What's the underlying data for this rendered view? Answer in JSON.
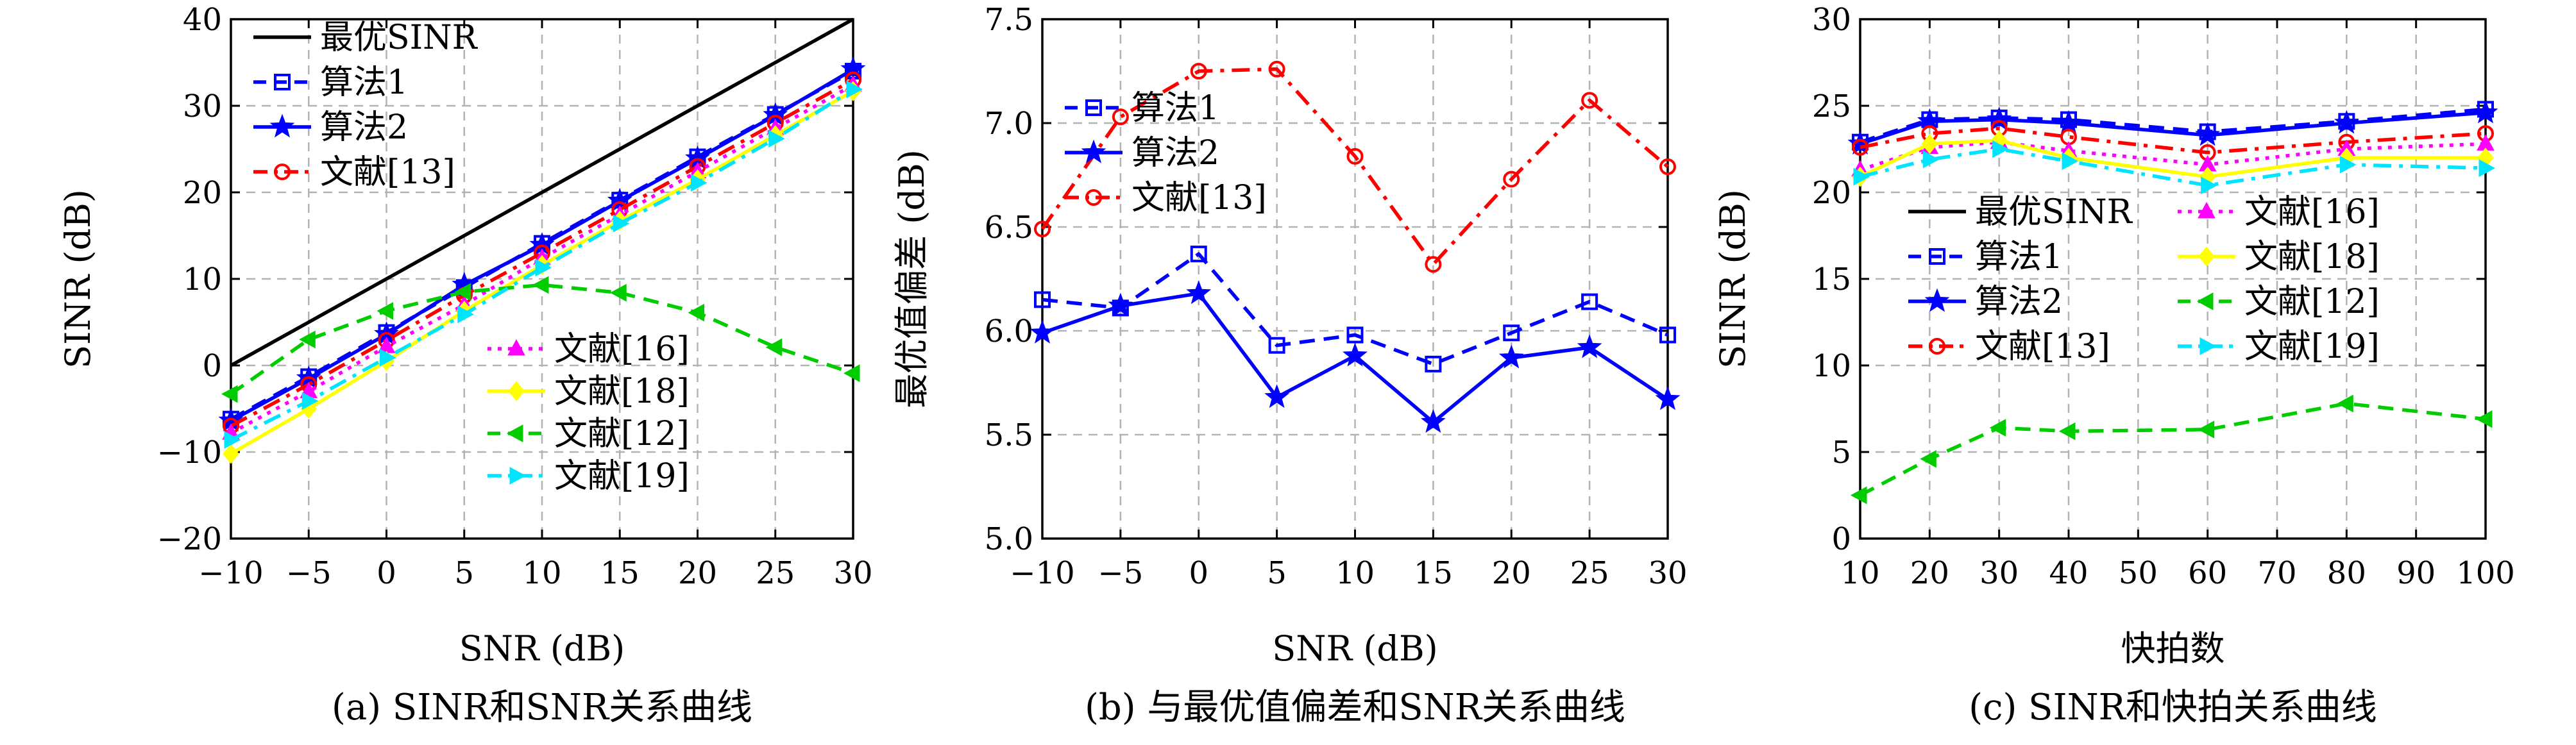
{
  "chart_data": [
    {
      "type": "line",
      "caption": "(a) SINR和SNR关系曲线",
      "xlabel": "SNR (dB)",
      "ylabel": "SINR (dB)",
      "xlim": [
        -10,
        30
      ],
      "ylim": [
        -20,
        40
      ],
      "xticks": [
        -10,
        -5,
        0,
        5,
        10,
        15,
        20,
        25,
        30
      ],
      "yticks": [
        -20,
        -10,
        0,
        10,
        20,
        30,
        40
      ],
      "xtick_labels": [
        "−10",
        "−5",
        "0",
        "5",
        "10",
        "15",
        "20",
        "25",
        "30"
      ],
      "ytick_labels": [
        "−20",
        "−10",
        "0",
        "10",
        "20",
        "30",
        "40"
      ],
      "grid": true,
      "legend_groups": [
        {
          "placement": "top-left",
          "series": [
            "最优SINR",
            "算法1",
            "算法2",
            "文献[13]"
          ]
        },
        {
          "placement": "bottom-right",
          "series": [
            "文献[16]",
            "文献[18]",
            "文献[12]",
            "文献[19]"
          ]
        }
      ],
      "x": [
        -10,
        -5,
        0,
        5,
        10,
        15,
        20,
        25,
        30
      ],
      "series": [
        {
          "name": "最优SINR",
          "values": [
            0,
            5,
            10,
            15,
            20,
            25,
            30,
            35,
            40
          ],
          "color": "#000000",
          "dash": "solid",
          "marker": "none"
        },
        {
          "name": "算法1",
          "values": [
            -6.2,
            -1.3,
            3.8,
            9.0,
            14.1,
            19.1,
            24.1,
            29.0,
            34.0
          ],
          "color": "#0000ff",
          "dash": "dashed",
          "marker": "square"
        },
        {
          "name": "算法2",
          "values": [
            -6.4,
            -1.5,
            3.6,
            9.3,
            13.9,
            19.0,
            23.9,
            28.9,
            34.2
          ],
          "color": "#0000ff",
          "dash": "solid",
          "marker": "star"
        },
        {
          "name": "文献[13]",
          "values": [
            -7.0,
            -2.2,
            2.9,
            8.1,
            13.0,
            18.0,
            23.0,
            28.0,
            33.0
          ],
          "color": "#ff0000",
          "dash": "dashdot",
          "marker": "circle"
        },
        {
          "name": "文献[16]",
          "values": [
            -7.8,
            -3.0,
            2.2,
            7.0,
            12.4,
            17.4,
            22.4,
            27.4,
            32.4
          ],
          "color": "#ff00ff",
          "dash": "dotted",
          "marker": "triangle-up"
        },
        {
          "name": "文献[18]",
          "values": [
            -10.2,
            -5.0,
            0.5,
            6.3,
            11.6,
            16.7,
            21.5,
            26.6,
            31.7
          ],
          "color": "#ffff00",
          "dash": "solid",
          "marker": "diamond"
        },
        {
          "name": "文献[12]",
          "values": [
            -3.3,
            3.0,
            6.3,
            8.5,
            9.3,
            8.4,
            6.1,
            2.1,
            -0.9
          ],
          "color": "#00cc00",
          "dash": "dashed",
          "marker": "triangle-left"
        },
        {
          "name": "文献[19]",
          "values": [
            -8.6,
            -4.1,
            0.9,
            5.9,
            11.3,
            16.4,
            21.1,
            26.2,
            31.9
          ],
          "color": "#00e5ff",
          "dash": "dashdot",
          "marker": "triangle-right"
        }
      ]
    },
    {
      "type": "line",
      "caption": "(b) 与最优值偏差和SNR关系曲线",
      "xlabel": "SNR (dB)",
      "ylabel": "最优值偏差 (dB)",
      "xlim": [
        -10,
        30
      ],
      "ylim": [
        5.0,
        7.5
      ],
      "xticks": [
        -10,
        -5,
        0,
        5,
        10,
        15,
        20,
        25,
        30
      ],
      "yticks": [
        5.0,
        5.5,
        6.0,
        6.5,
        7.0,
        7.5
      ],
      "xtick_labels": [
        "−10",
        "−5",
        "0",
        "5",
        "10",
        "15",
        "20",
        "25",
        "30"
      ],
      "ytick_labels": [
        "5.0",
        "5.5",
        "6.0",
        "6.5",
        "7.0",
        "7.5"
      ],
      "grid": true,
      "legend_groups": [
        {
          "placement": "top-left",
          "series": [
            "算法1",
            "算法2",
            "文献[13]"
          ]
        }
      ],
      "x": [
        -10,
        -5,
        0,
        5,
        10,
        15,
        20,
        25,
        30
      ],
      "series": [
        {
          "name": "算法1",
          "values": [
            6.15,
            6.11,
            6.37,
            5.93,
            5.98,
            5.84,
            5.99,
            6.14,
            5.98
          ],
          "color": "#0000ff",
          "dash": "dashed",
          "marker": "square"
        },
        {
          "name": "算法2",
          "values": [
            5.99,
            6.12,
            6.18,
            5.68,
            5.88,
            5.56,
            5.87,
            5.92,
            5.67
          ],
          "color": "#0000ff",
          "dash": "solid",
          "marker": "star"
        },
        {
          "name": "文献[13]",
          "values": [
            6.49,
            7.03,
            7.25,
            7.26,
            6.84,
            6.32,
            6.73,
            7.11,
            6.79
          ],
          "color": "#ff0000",
          "dash": "dashdot",
          "marker": "circle"
        }
      ]
    },
    {
      "type": "line",
      "caption": "(c) SINR和快拍关系曲线",
      "xlabel": "快拍数",
      "ylabel": "SINR (dB)",
      "xlim": [
        10,
        100
      ],
      "ylim": [
        0,
        30
      ],
      "xticks": [
        10,
        20,
        30,
        40,
        50,
        60,
        70,
        80,
        90,
        100
      ],
      "yticks": [
        0,
        5,
        10,
        15,
        20,
        25,
        30
      ],
      "xtick_labels": [
        "10",
        "20",
        "30",
        "40",
        "50",
        "60",
        "70",
        "80",
        "90",
        "100"
      ],
      "ytick_labels": [
        "0",
        "5",
        "10",
        "15",
        "20",
        "25",
        "30"
      ],
      "grid": true,
      "legend_groups": [
        {
          "placement": "middle-left",
          "columns": 2,
          "series": [
            "最优SINR",
            "文献[16]",
            "算法1",
            "文献[18]",
            "算法2",
            "文献[12]",
            "文献[13]",
            "文献[19]"
          ]
        }
      ],
      "x": [
        10,
        20,
        30,
        40,
        60,
        80,
        100
      ],
      "series": [
        {
          "name": "最优SINR",
          "values": [
            null,
            null,
            null,
            null,
            null,
            null,
            null
          ],
          "color": "#000000",
          "dash": "solid",
          "marker": "none"
        },
        {
          "name": "算法1",
          "values": [
            22.9,
            24.2,
            24.3,
            24.2,
            23.5,
            24.1,
            24.8
          ],
          "color": "#0000ff",
          "dash": "dashed",
          "marker": "square"
        },
        {
          "name": "算法2",
          "values": [
            22.8,
            24.1,
            24.2,
            24.0,
            23.3,
            24.0,
            24.6
          ],
          "color": "#0000ff",
          "dash": "solid",
          "marker": "star"
        },
        {
          "name": "文献[13]",
          "values": [
            22.6,
            23.4,
            23.7,
            23.2,
            22.3,
            22.9,
            23.4
          ],
          "color": "#ff0000",
          "dash": "dashdot",
          "marker": "circle"
        },
        {
          "name": "文献[16]",
          "values": [
            21.3,
            22.6,
            22.9,
            22.4,
            21.6,
            22.5,
            22.8
          ],
          "color": "#ff00ff",
          "dash": "dotted",
          "marker": "triangle-up"
        },
        {
          "name": "文献[18]",
          "values": [
            20.9,
            22.8,
            23.0,
            22.0,
            20.9,
            22.0,
            22.0
          ],
          "color": "#ffff00",
          "dash": "solid",
          "marker": "diamond"
        },
        {
          "name": "文献[12]",
          "values": [
            2.5,
            4.6,
            6.4,
            6.2,
            6.3,
            7.8,
            6.9
          ],
          "color": "#00cc00",
          "dash": "dashed",
          "marker": "triangle-left"
        },
        {
          "name": "文献[19]",
          "values": [
            20.9,
            21.9,
            22.5,
            21.8,
            20.4,
            21.6,
            21.4
          ],
          "color": "#00e5ff",
          "dash": "dashdot",
          "marker": "triangle-right"
        }
      ]
    }
  ]
}
